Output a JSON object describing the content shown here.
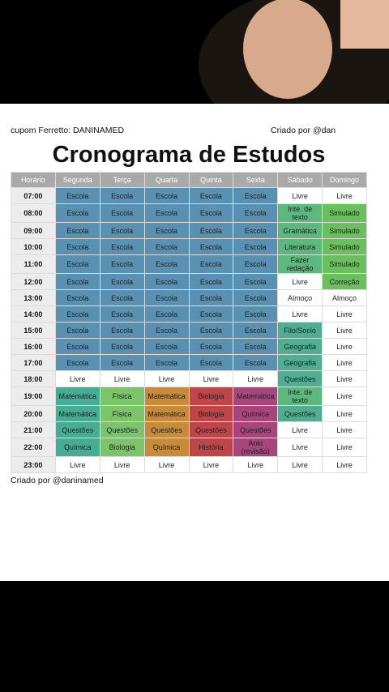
{
  "header": {
    "coupon": "cupom Ferretto: DANINAMED",
    "credit": "Criado por @dan"
  },
  "title": "Cronograma de Estudos",
  "table": {
    "columns": [
      "Horário",
      "Segunda",
      "Terça",
      "Quarta",
      "Quinta",
      "Sexta",
      "Sábado",
      "Domingo"
    ],
    "header_color": "#a9a9a9",
    "rows": [
      {
        "time": "07:00",
        "cells": [
          "Escola",
          "Escola",
          "Escola",
          "Escola",
          "Escola",
          "Livre",
          "Livre"
        ],
        "colors": [
          "#5a91b2",
          "#5a91b2",
          "#5a91b2",
          "#5a91b2",
          "#5a91b2",
          "#ffffff",
          "#ffffff"
        ]
      },
      {
        "time": "08:00",
        "cells": [
          "Escola",
          "Escola",
          "Escola",
          "Escola",
          "Escola",
          "Inte. de texto",
          "Simulado"
        ],
        "colors": [
          "#5a91b2",
          "#5a91b2",
          "#5a91b2",
          "#5a91b2",
          "#5a91b2",
          "#5cb87e",
          "#6cbf5e"
        ]
      },
      {
        "time": "09:00",
        "cells": [
          "Escola",
          "Escola",
          "Escola",
          "Escola",
          "Escola",
          "Gramática",
          "Simulado"
        ],
        "colors": [
          "#5a91b2",
          "#5a91b2",
          "#5a91b2",
          "#5a91b2",
          "#5a91b2",
          "#5cb87e",
          "#6cbf5e"
        ]
      },
      {
        "time": "10:00",
        "cells": [
          "Escola",
          "Escola",
          "Escola",
          "Escola",
          "Escola",
          "Literatura",
          "Simulado"
        ],
        "colors": [
          "#5a91b2",
          "#5a91b2",
          "#5a91b2",
          "#5a91b2",
          "#5a91b2",
          "#5cb87e",
          "#6cbf5e"
        ]
      },
      {
        "time": "11:00",
        "cells": [
          "Escola",
          "Escola",
          "Escola",
          "Escola",
          "Escola",
          "Fazer redação",
          "Simulado"
        ],
        "colors": [
          "#5a91b2",
          "#5a91b2",
          "#5a91b2",
          "#5a91b2",
          "#5a91b2",
          "#5cb87e",
          "#6cbf5e"
        ]
      },
      {
        "time": "12:00",
        "cells": [
          "Escola",
          "Escola",
          "Escola",
          "Escola",
          "Escola",
          "Livre",
          "Correção"
        ],
        "colors": [
          "#5a91b2",
          "#5a91b2",
          "#5a91b2",
          "#5a91b2",
          "#5a91b2",
          "#ffffff",
          "#6cbf5e"
        ]
      },
      {
        "time": "13:00",
        "cells": [
          "Escola",
          "Escola",
          "Escola",
          "Escola",
          "Escola",
          "Almoço",
          "Almoço"
        ],
        "colors": [
          "#5a91b2",
          "#5a91b2",
          "#5a91b2",
          "#5a91b2",
          "#5a91b2",
          "#ffffff",
          "#ffffff"
        ]
      },
      {
        "time": "14:00",
        "cells": [
          "Escola",
          "Escola",
          "Escola",
          "Escola",
          "Escola",
          "Livre",
          "Livre"
        ],
        "colors": [
          "#5a91b2",
          "#5a91b2",
          "#5a91b2",
          "#5a91b2",
          "#5a91b2",
          "#ffffff",
          "#ffffff"
        ]
      },
      {
        "time": "15:00",
        "cells": [
          "Escola",
          "Escola",
          "Escola",
          "Escola",
          "Escola",
          "Filo/Socio",
          "Livre"
        ],
        "colors": [
          "#5a91b2",
          "#5a91b2",
          "#5a91b2",
          "#5a91b2",
          "#5a91b2",
          "#4fae92",
          "#ffffff"
        ]
      },
      {
        "time": "16:00",
        "cells": [
          "Escola",
          "Escola",
          "Escola",
          "Escola",
          "Escola",
          "Geografia",
          "Livre"
        ],
        "colors": [
          "#5a91b2",
          "#5a91b2",
          "#5a91b2",
          "#5a91b2",
          "#5a91b2",
          "#4fae92",
          "#ffffff"
        ]
      },
      {
        "time": "17:00",
        "cells": [
          "Escola",
          "Escola",
          "Escola",
          "Escola",
          "Escola",
          "Geografia",
          "Livre"
        ],
        "colors": [
          "#5a91b2",
          "#5a91b2",
          "#5a91b2",
          "#5a91b2",
          "#5a91b2",
          "#4fae92",
          "#ffffff"
        ]
      },
      {
        "time": "18:00",
        "cells": [
          "Livre",
          "Livre",
          "Livre",
          "Livre",
          "Livre",
          "Questões",
          "Livre"
        ],
        "colors": [
          "#ffffff",
          "#ffffff",
          "#ffffff",
          "#ffffff",
          "#ffffff",
          "#4fae92",
          "#ffffff"
        ]
      },
      {
        "time": "19:00",
        "cells": [
          "Matemática",
          "Física",
          "Matemática",
          "Biologia",
          "Matemática",
          "Inte. de texto",
          "Livre"
        ],
        "colors": [
          "#45ad93",
          "#7cc46a",
          "#c98a3a",
          "#bf4648",
          "#a8457e",
          "#5cb87e",
          "#ffffff"
        ]
      },
      {
        "time": "20:00",
        "cells": [
          "Matemática",
          "Física",
          "Matemática",
          "Biologia",
          "Química",
          "Questões",
          "Livre"
        ],
        "colors": [
          "#45ad93",
          "#7cc46a",
          "#c98a3a",
          "#bf4648",
          "#a8457e",
          "#4fae92",
          "#ffffff"
        ]
      },
      {
        "time": "21:00",
        "cells": [
          "Questões",
          "Questões",
          "Questões",
          "Questões",
          "Questões",
          "Livre",
          "Livre"
        ],
        "colors": [
          "#45ad93",
          "#7cc46a",
          "#c98a3a",
          "#bf4648",
          "#a8457e",
          "#ffffff",
          "#ffffff"
        ]
      },
      {
        "time": "22:00",
        "cells": [
          "Química",
          "Biologia",
          "Química",
          "História",
          "Anki (revisão)",
          "Livre",
          "Livre"
        ],
        "colors": [
          "#45ad93",
          "#7cc46a",
          "#c98a3a",
          "#bf4648",
          "#a8457e",
          "#ffffff",
          "#ffffff"
        ]
      },
      {
        "time": "23:00",
        "cells": [
          "Livre",
          "Livre",
          "Livre",
          "Livre",
          "Livre",
          "Livre",
          "Livre"
        ],
        "colors": [
          "#ffffff",
          "#ffffff",
          "#ffffff",
          "#ffffff",
          "#ffffff",
          "#ffffff",
          "#ffffff"
        ]
      }
    ]
  },
  "footer": "Criado por @daninamed"
}
